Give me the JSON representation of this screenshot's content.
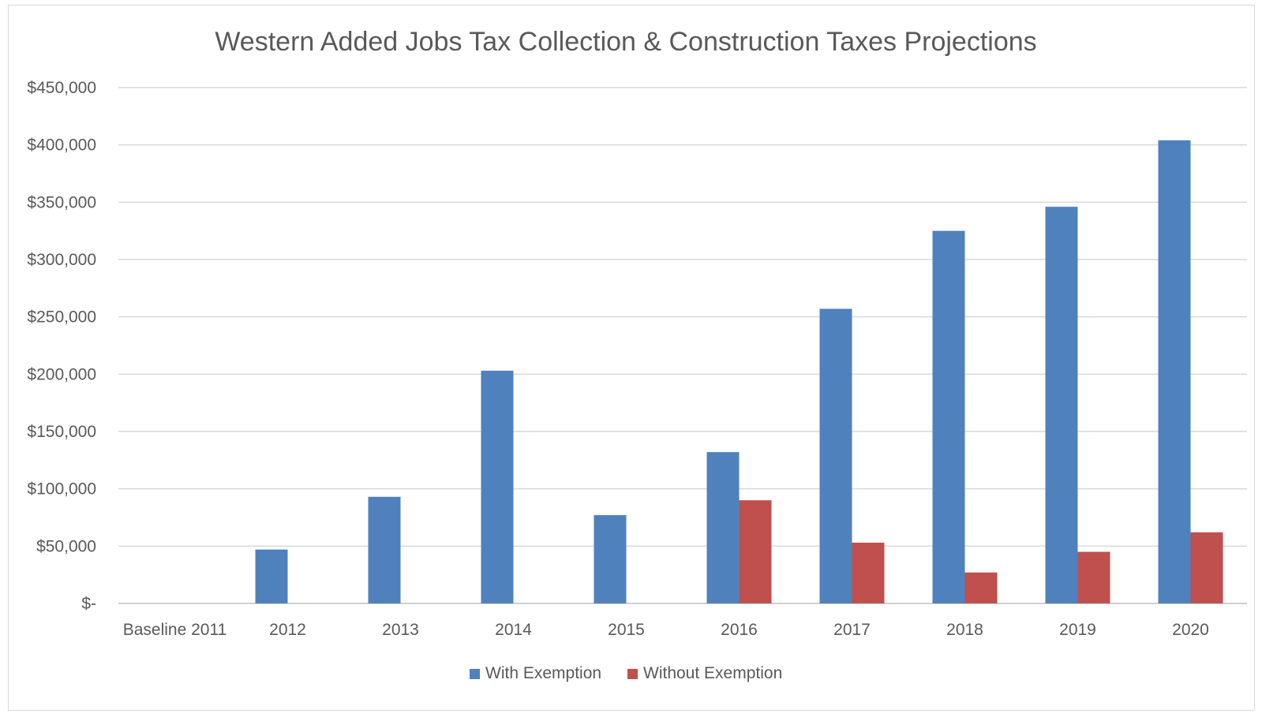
{
  "chart_data": {
    "type": "bar",
    "title": "Western Added Jobs Tax Collection & Construction Taxes Projections",
    "xlabel": "",
    "ylabel": "",
    "categories": [
      "Baseline 2011",
      "2012",
      "2013",
      "2014",
      "2015",
      "2016",
      "2017",
      "2018",
      "2019",
      "2020"
    ],
    "series": [
      {
        "name": "With Exemption",
        "color": "#4f81bd",
        "values": [
          0,
          47000,
          93000,
          203000,
          77000,
          132000,
          257000,
          325000,
          346000,
          404000
        ]
      },
      {
        "name": "Without Exemption",
        "color": "#c0504d",
        "values": [
          0,
          0,
          0,
          0,
          0,
          90000,
          53000,
          27000,
          45000,
          62000
        ]
      }
    ],
    "ylim": [
      0,
      450000
    ],
    "yticks": [
      0,
      50000,
      100000,
      150000,
      200000,
      250000,
      300000,
      350000,
      400000,
      450000
    ],
    "ytick_labels": [
      "$-",
      "$50,000",
      "$100,000",
      "$150,000",
      "$200,000",
      "$250,000",
      "$300,000",
      "$350,000",
      "$400,000",
      "$450,000"
    ],
    "grid": true,
    "legend_position": "bottom"
  }
}
